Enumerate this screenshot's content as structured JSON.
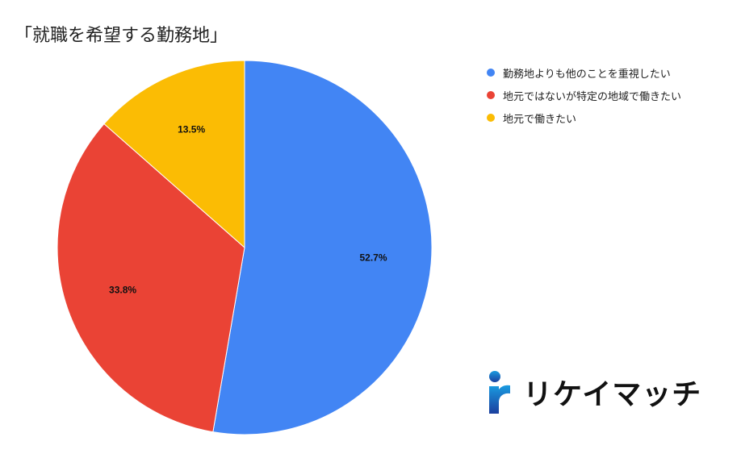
{
  "chart_data": {
    "type": "pie",
    "title": "「就職を希望する勤務地」",
    "categories": [
      "勤務地よりも他のことを重視したい",
      "地元ではないが特定の地域で働きたい",
      "地元で働きたい"
    ],
    "values": [
      52.7,
      33.8,
      13.5
    ],
    "value_labels": [
      "52.7%",
      "33.8%",
      "13.5%"
    ],
    "colors": [
      "#4285f4",
      "#ea4335",
      "#fbbc04"
    ],
    "legend_placement": "right"
  },
  "brand": {
    "name": "リケイマッチ",
    "mark_colors": [
      "#1a9be0",
      "#1b3f9e"
    ]
  }
}
